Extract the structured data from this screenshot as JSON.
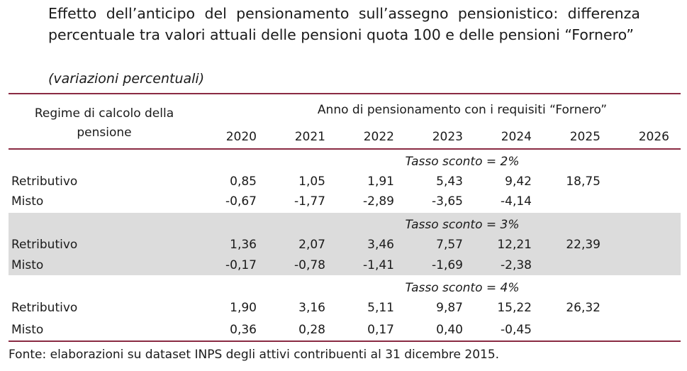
{
  "title": "Effetto dell’anticipo del pensionamento sull’assegno pensionistico: differenza percentuale tra valori attuali delle pensioni quota 100 e delle pensioni “Fornero”",
  "subtitle": "(variazioni percentuali)",
  "table": {
    "header_left": "Regime di calcolo della pensione",
    "header_group": "Anno di pensionamento con i requisiti “Fornero”",
    "years": [
      "2020",
      "2021",
      "2022",
      "2023",
      "2024",
      "2025",
      "2026"
    ],
    "sections": [
      {
        "label": "Tasso sconto = 2%",
        "rows": [
          {
            "label": "Retributivo",
            "values": [
              "0,85",
              "1,05",
              "1,91",
              "5,43",
              "9,42",
              "18,75",
              ""
            ]
          },
          {
            "label": "Misto",
            "values": [
              "-0,67",
              "-1,77",
              "-2,89",
              "-3,65",
              "-4,14",
              "",
              ""
            ]
          }
        ]
      },
      {
        "label": "Tasso sconto = 3%",
        "rows": [
          {
            "label": "Retributivo",
            "values": [
              "1,36",
              "2,07",
              "3,46",
              "7,57",
              "12,21",
              "22,39",
              ""
            ]
          },
          {
            "label": "Misto",
            "values": [
              "-0,17",
              "-0,78",
              "-1,41",
              "-1,69",
              "-2,38",
              "",
              ""
            ]
          }
        ]
      },
      {
        "label": "Tasso sconto = 4%",
        "rows": [
          {
            "label": "Retributivo",
            "values": [
              "1,90",
              "3,16",
              "5,11",
              "9,87",
              "15,22",
              "26,32",
              ""
            ]
          },
          {
            "label": "Misto",
            "values": [
              "0,36",
              "0,28",
              "0,17",
              "0,40",
              "-0,45",
              "",
              ""
            ]
          }
        ]
      }
    ]
  },
  "footer": "Fonte: elaborazioni su dataset INPS degli attivi contribuenti al 31 dicembre 2015.",
  "colors": {
    "rule": "#8a2b43",
    "band": "#dcdcdc",
    "text": "#1a1a1a"
  }
}
